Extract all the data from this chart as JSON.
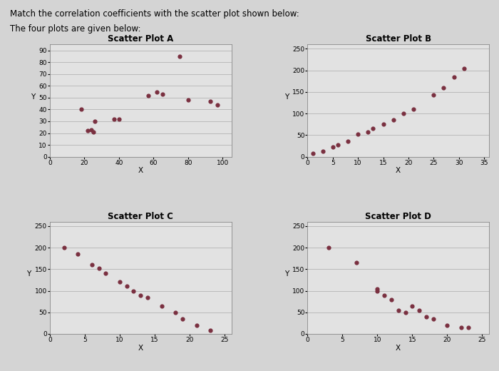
{
  "title_text": "Match the correlation coefficients with the scatter plot shown below:",
  "subtitle_text": "The four plots are given below:",
  "bg_color": "#d4d4d4",
  "plot_bg_color": "#e2e2e2",
  "dot_color": "#7a3040",
  "dot_size": 12,
  "plotA": {
    "title": "Scatter Plot A",
    "xlabel": "X",
    "ylabel": "Y",
    "xlim": [
      0,
      105
    ],
    "ylim": [
      0,
      95
    ],
    "xticks": [
      0,
      20,
      40,
      60,
      80,
      100
    ],
    "yticks": [
      0,
      10,
      20,
      30,
      40,
      50,
      60,
      70,
      80,
      90
    ],
    "x": [
      18,
      22,
      24,
      25,
      26,
      37,
      40,
      57,
      62,
      65,
      75,
      80,
      93,
      97
    ],
    "y": [
      40,
      22,
      23,
      21,
      30,
      32,
      32,
      52,
      55,
      53,
      85,
      48,
      47,
      44
    ]
  },
  "plotB": {
    "title": "Scatter Plot B",
    "xlabel": "X",
    "ylabel": "Y",
    "xlim": [
      0,
      36
    ],
    "ylim": [
      0,
      260
    ],
    "xticks": [
      0,
      5,
      10,
      15,
      20,
      25,
      30,
      35
    ],
    "yticks": [
      0,
      50,
      100,
      150,
      200,
      250
    ],
    "x": [
      1,
      3,
      5,
      6,
      8,
      10,
      12,
      13,
      15,
      17,
      19,
      21,
      25,
      27,
      29,
      31
    ],
    "y": [
      8,
      13,
      22,
      28,
      35,
      52,
      58,
      65,
      75,
      85,
      100,
      110,
      143,
      160,
      185,
      205
    ]
  },
  "plotC": {
    "title": "Scatter Plot C",
    "xlabel": "X",
    "ylabel": "Y",
    "xlim": [
      0,
      26
    ],
    "ylim": [
      0,
      260
    ],
    "xticks": [
      0,
      5,
      10,
      15,
      20,
      25
    ],
    "yticks": [
      0,
      50,
      100,
      150,
      200,
      250
    ],
    "x": [
      2,
      4,
      6,
      7,
      8,
      10,
      11,
      12,
      13,
      14,
      16,
      18,
      19,
      21,
      23
    ],
    "y": [
      200,
      185,
      160,
      152,
      140,
      120,
      110,
      100,
      90,
      85,
      65,
      50,
      35,
      20,
      8
    ]
  },
  "plotD": {
    "title": "Scatter Plot D",
    "xlabel": "X",
    "ylabel": "Y",
    "xlim": [
      0,
      26
    ],
    "ylim": [
      0,
      260
    ],
    "xticks": [
      0,
      5,
      10,
      15,
      20,
      25
    ],
    "yticks": [
      0,
      50,
      100,
      150,
      200,
      250
    ],
    "x": [
      3,
      7,
      10,
      10,
      11,
      12,
      13,
      14,
      15,
      16,
      17,
      18,
      20,
      22,
      23
    ],
    "y": [
      200,
      165,
      105,
      100,
      90,
      80,
      55,
      50,
      65,
      55,
      40,
      35,
      20,
      15,
      15
    ]
  }
}
